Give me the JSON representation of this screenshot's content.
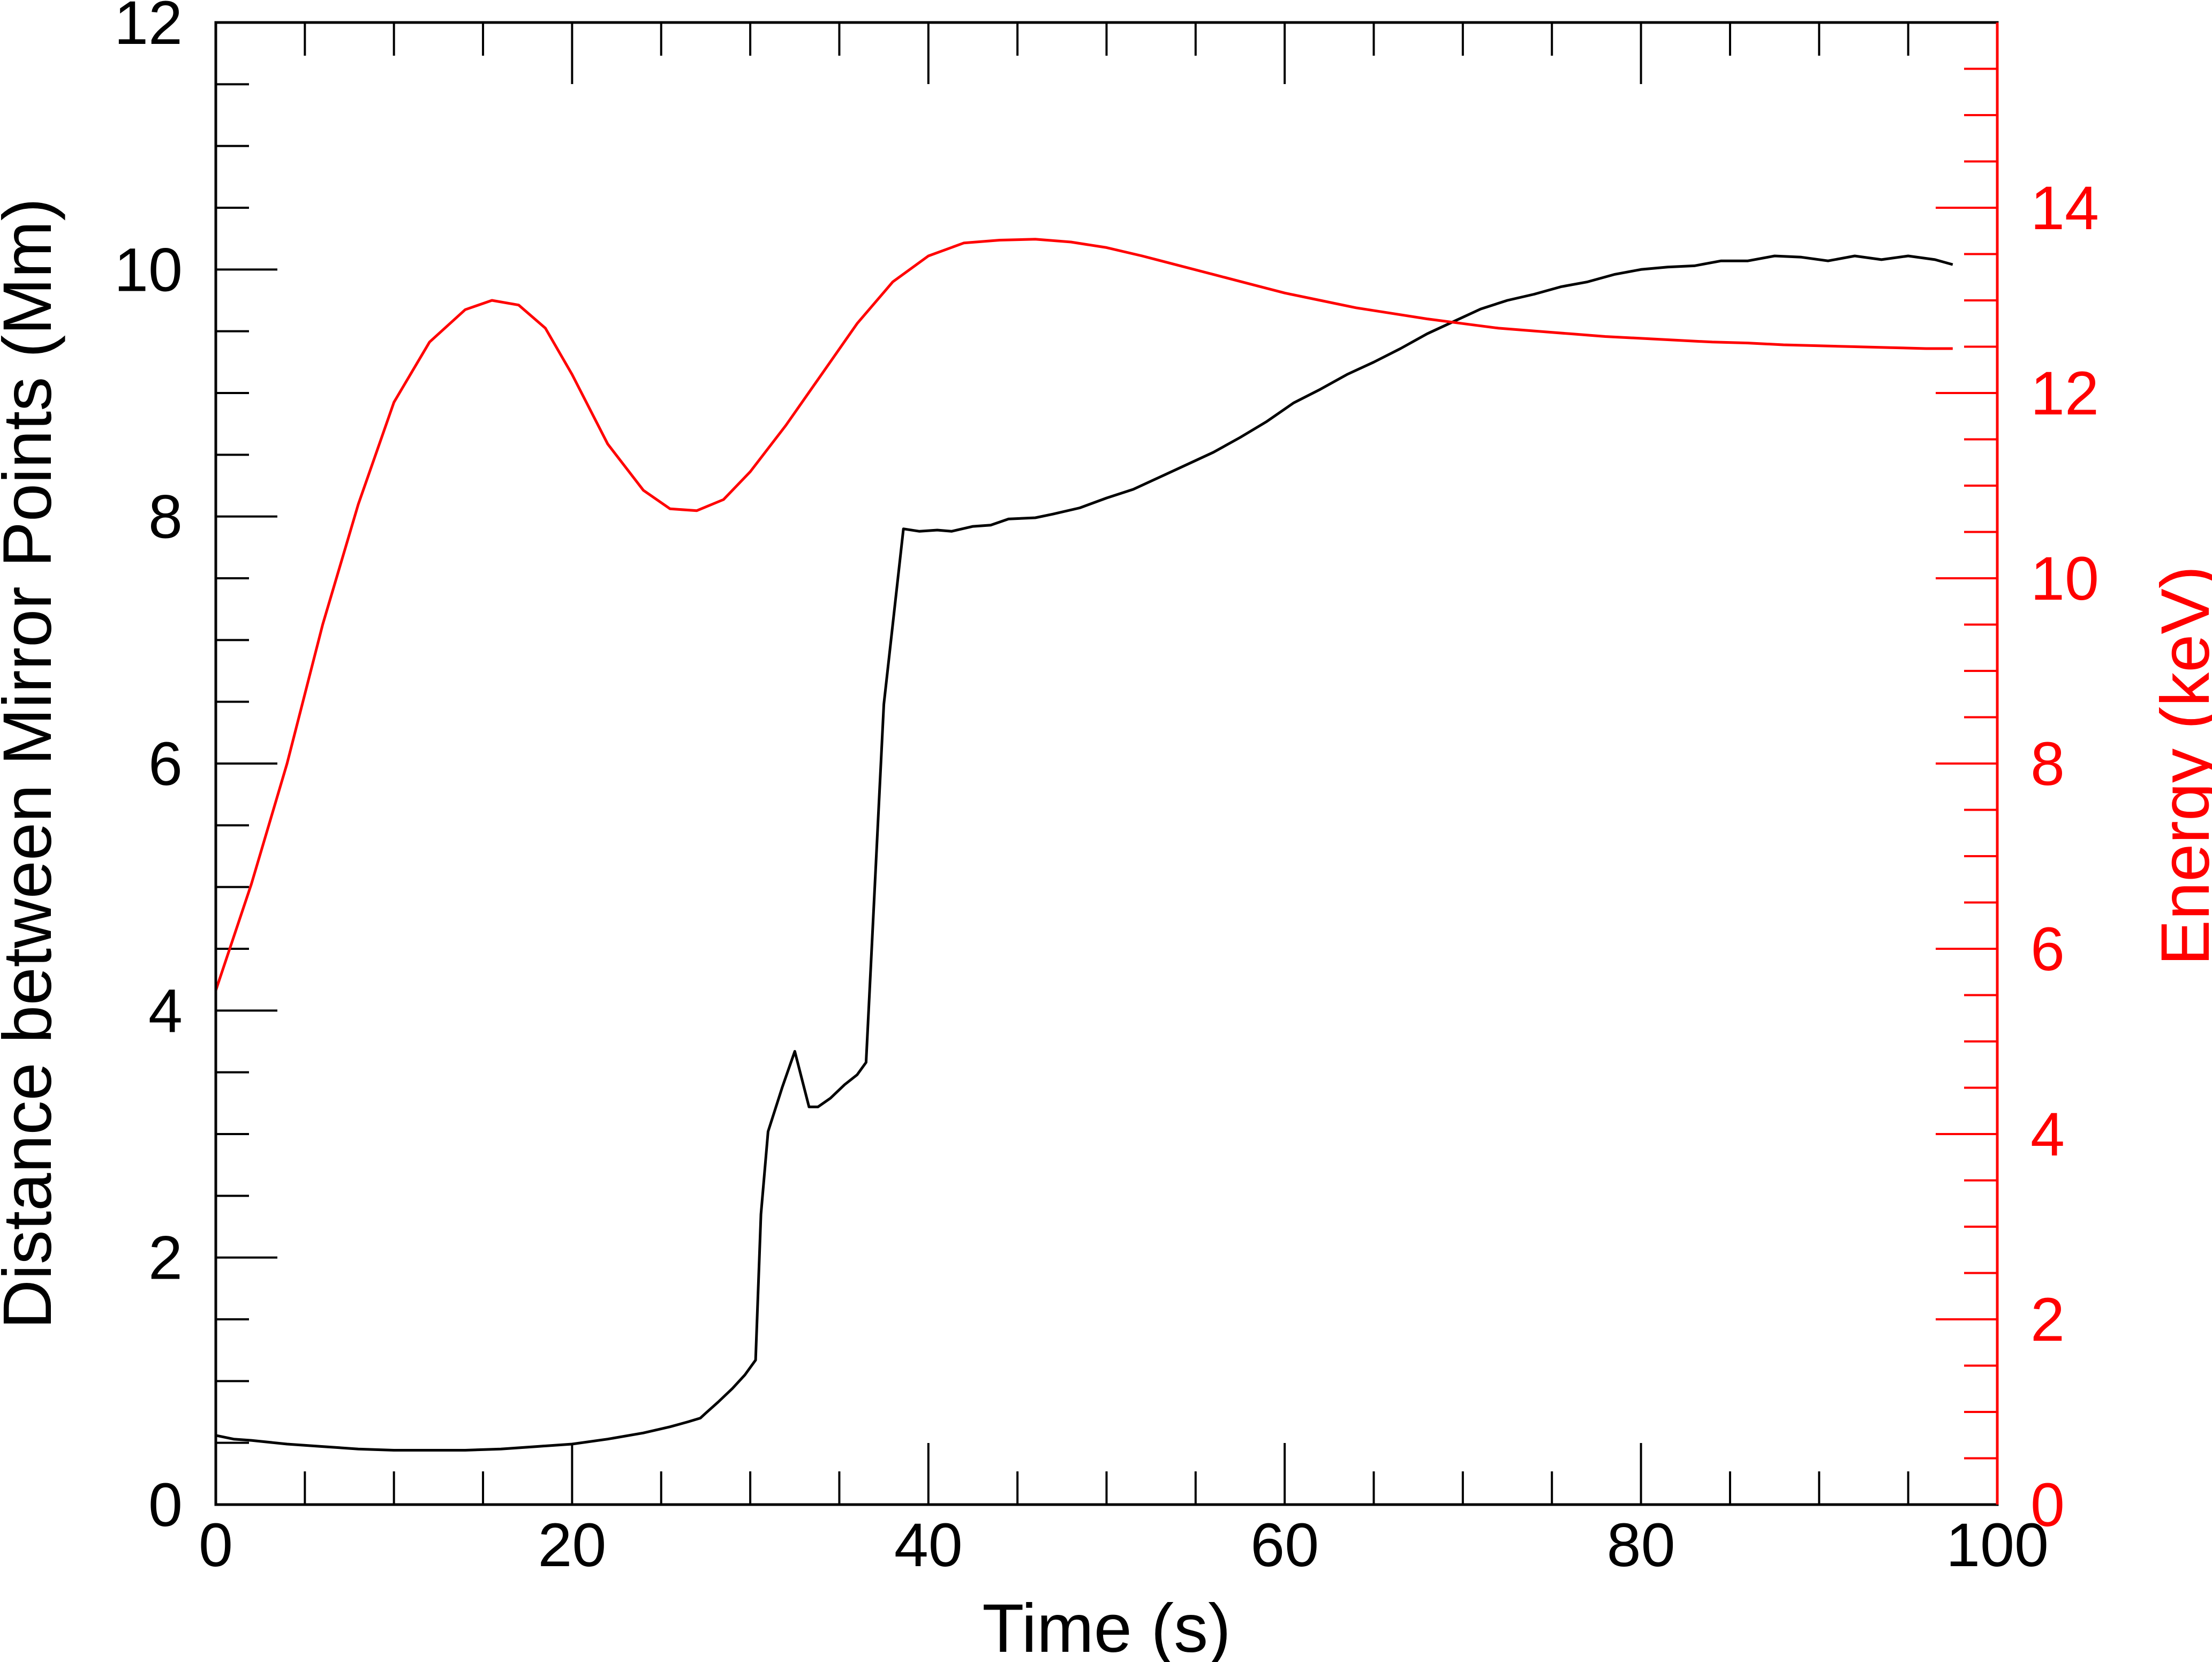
{
  "chart_data": {
    "type": "line",
    "xlabel": "Time (s)",
    "ylabel_left": "Distance between Mirror Points (Mm)",
    "ylabel_right": "Energy (keV)",
    "xlim": [
      0,
      100
    ],
    "ylim_left": [
      0,
      12
    ],
    "ylim_right": [
      0,
      16
    ],
    "x_ticks": [
      "0",
      "20",
      "40",
      "60",
      "80",
      "100"
    ],
    "y_left_ticks": [
      "0",
      "2",
      "4",
      "6",
      "8",
      "10",
      "12"
    ],
    "y_right_ticks": [
      "0",
      "2",
      "4",
      "6",
      "8",
      "10",
      "12",
      "14"
    ],
    "grid": false,
    "colors": {
      "distance": "#000000",
      "energy": "#ff0000"
    },
    "series": [
      {
        "axis": "left",
        "color": "#000000",
        "points": [
          [
            0,
            0.56
          ],
          [
            1,
            0.53
          ],
          [
            2,
            0.52
          ],
          [
            4,
            0.49
          ],
          [
            6,
            0.47
          ],
          [
            8,
            0.45
          ],
          [
            10,
            0.44
          ],
          [
            12,
            0.44
          ],
          [
            14,
            0.44
          ],
          [
            16,
            0.45
          ],
          [
            18,
            0.47
          ],
          [
            20,
            0.49
          ],
          [
            22,
            0.53
          ],
          [
            24,
            0.58
          ],
          [
            25.5,
            0.63
          ],
          [
            26.5,
            0.67
          ],
          [
            27.2,
            0.7
          ],
          [
            27.5,
            0.74
          ],
          [
            28.2,
            0.83
          ],
          [
            29,
            0.94
          ],
          [
            29.7,
            1.05
          ],
          [
            30.3,
            1.17
          ],
          [
            30.6,
            2.35
          ],
          [
            31,
            3.02
          ],
          [
            31.8,
            3.38
          ],
          [
            32.5,
            3.67
          ],
          [
            33.3,
            3.22
          ],
          [
            33.8,
            3.22
          ],
          [
            34.5,
            3.29
          ],
          [
            35.3,
            3.4
          ],
          [
            36,
            3.48
          ],
          [
            36.5,
            3.58
          ],
          [
            37.5,
            6.48
          ],
          [
            38.6,
            7.9
          ],
          [
            39.5,
            7.88
          ],
          [
            40.5,
            7.89
          ],
          [
            41.3,
            7.88
          ],
          [
            42.5,
            7.92
          ],
          [
            43.5,
            7.93
          ],
          [
            44.5,
            7.98
          ],
          [
            46,
            7.99
          ],
          [
            47,
            8.02
          ],
          [
            48.5,
            8.07
          ],
          [
            50,
            8.15
          ],
          [
            51.5,
            8.22
          ],
          [
            53,
            8.32
          ],
          [
            54.5,
            8.42
          ],
          [
            56,
            8.52
          ],
          [
            57.5,
            8.64
          ],
          [
            59,
            8.77
          ],
          [
            60.5,
            8.92
          ],
          [
            62,
            9.03
          ],
          [
            63.5,
            9.15
          ],
          [
            65,
            9.25
          ],
          [
            66.5,
            9.36
          ],
          [
            68,
            9.48
          ],
          [
            69.5,
            9.58
          ],
          [
            71,
            9.68
          ],
          [
            72.5,
            9.75
          ],
          [
            74,
            9.8
          ],
          [
            75.5,
            9.86
          ],
          [
            77,
            9.9
          ],
          [
            78.5,
            9.96
          ],
          [
            80,
            10.0
          ],
          [
            81.5,
            10.02
          ],
          [
            83,
            10.03
          ],
          [
            84.5,
            10.07
          ],
          [
            86,
            10.07
          ],
          [
            87.5,
            10.11
          ],
          [
            89,
            10.1
          ],
          [
            90.5,
            10.07
          ],
          [
            92,
            10.11
          ],
          [
            93.5,
            10.08
          ],
          [
            95,
            10.11
          ],
          [
            96.5,
            10.08
          ],
          [
            97.5,
            10.04
          ]
        ]
      },
      {
        "axis": "right",
        "color": "#ff0000",
        "points": [
          [
            0,
            5.55
          ],
          [
            2,
            6.7
          ],
          [
            4,
            8.0
          ],
          [
            6,
            9.5
          ],
          [
            8,
            10.8
          ],
          [
            10,
            11.9
          ],
          [
            12,
            12.55
          ],
          [
            14,
            12.9
          ],
          [
            15.5,
            13.0
          ],
          [
            17,
            12.95
          ],
          [
            18.5,
            12.7
          ],
          [
            20,
            12.2
          ],
          [
            22,
            11.45
          ],
          [
            24,
            10.95
          ],
          [
            25.5,
            10.75
          ],
          [
            27,
            10.73
          ],
          [
            28.5,
            10.85
          ],
          [
            30,
            11.15
          ],
          [
            32,
            11.65
          ],
          [
            34,
            12.2
          ],
          [
            36,
            12.75
          ],
          [
            38,
            13.2
          ],
          [
            40,
            13.48
          ],
          [
            42,
            13.62
          ],
          [
            44,
            13.65
          ],
          [
            46,
            13.66
          ],
          [
            48,
            13.63
          ],
          [
            50,
            13.57
          ],
          [
            52,
            13.48
          ],
          [
            54,
            13.38
          ],
          [
            56,
            13.28
          ],
          [
            58,
            13.18
          ],
          [
            60,
            13.08
          ],
          [
            62,
            13.0
          ],
          [
            64,
            12.92
          ],
          [
            66,
            12.86
          ],
          [
            68,
            12.8
          ],
          [
            70,
            12.75
          ],
          [
            72,
            12.7
          ],
          [
            74,
            12.67
          ],
          [
            76,
            12.64
          ],
          [
            78,
            12.61
          ],
          [
            80,
            12.59
          ],
          [
            82,
            12.57
          ],
          [
            84,
            12.55
          ],
          [
            86,
            12.54
          ],
          [
            88,
            12.52
          ],
          [
            90,
            12.51
          ],
          [
            92,
            12.5
          ],
          [
            94,
            12.49
          ],
          [
            96,
            12.48
          ],
          [
            97.5,
            12.48
          ]
        ]
      }
    ]
  }
}
